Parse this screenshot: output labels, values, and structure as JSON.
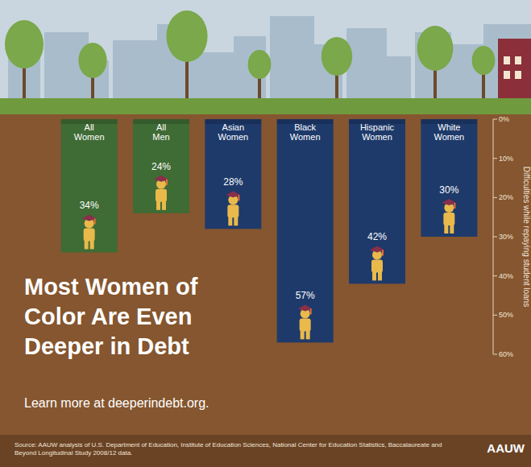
{
  "chart_data": {
    "type": "bar",
    "title": "Most Women of Color Are Even Deeper in Debt",
    "subtitle": "Learn more at deeperindebt.org.",
    "source": "Source: AAUW analysis of U.S. Department of Education, Institute of Education Sciences, National Center for Education Statistics, Baccalaureate and Beyond Longitudinal Study 2008/12 data.",
    "logo": "AAUW",
    "y_label": "Difficulties while repaying student loans",
    "categories": [
      "All Women",
      "All Men",
      "Asian Women",
      "Black Women",
      "Hispanic Women",
      "White Women"
    ],
    "values": [
      34,
      24,
      28,
      57,
      42,
      30
    ],
    "value_labels": [
      "34%",
      "24%",
      "28%",
      "57%",
      "42%",
      "30%"
    ],
    "colors": [
      "#3f6b34",
      "#3f6b34",
      "#1e3a6a",
      "#1e3a6a",
      "#1e3a6a",
      "#1e3a6a"
    ],
    "ylim": [
      0,
      60
    ],
    "yticks": [
      {
        "value": 0,
        "label": "0%"
      },
      {
        "value": 10,
        "label": "10%"
      },
      {
        "value": 20,
        "label": "20%"
      },
      {
        "value": 30,
        "label": "30%"
      },
      {
        "value": 40,
        "label": "40%"
      },
      {
        "value": 50,
        "label": "50%"
      },
      {
        "value": 60,
        "label": "60%"
      }
    ],
    "grid": false,
    "data_labels": true
  }
}
